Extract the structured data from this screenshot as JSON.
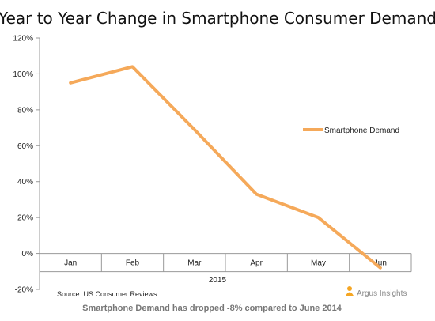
{
  "chart_data": {
    "type": "line",
    "title": "Year to Year Change in Smartphone Consumer Demand",
    "categories": [
      "Jan",
      "Feb",
      "Mar",
      "Apr",
      "May",
      "Jun"
    ],
    "xlabel": "2015",
    "series": [
      {
        "name": "Smartphone Demand",
        "values": [
          95,
          104,
          69,
          33,
          20,
          -8
        ],
        "color": "#F5A95A"
      }
    ],
    "ylim": [
      -20,
      120
    ],
    "yticks": [
      "-20%",
      "0%",
      "20%",
      "40%",
      "60%",
      "80%",
      "100%",
      "120%"
    ],
    "grid": false,
    "legend_position": "right"
  },
  "source": "Source: US Consumer Reviews",
  "footnote": "Smartphone Demand has dropped -8% compared to June 2014",
  "brand": "Argus Insights",
  "brand_icon": "person-icon",
  "brand_color": "#F5A623"
}
